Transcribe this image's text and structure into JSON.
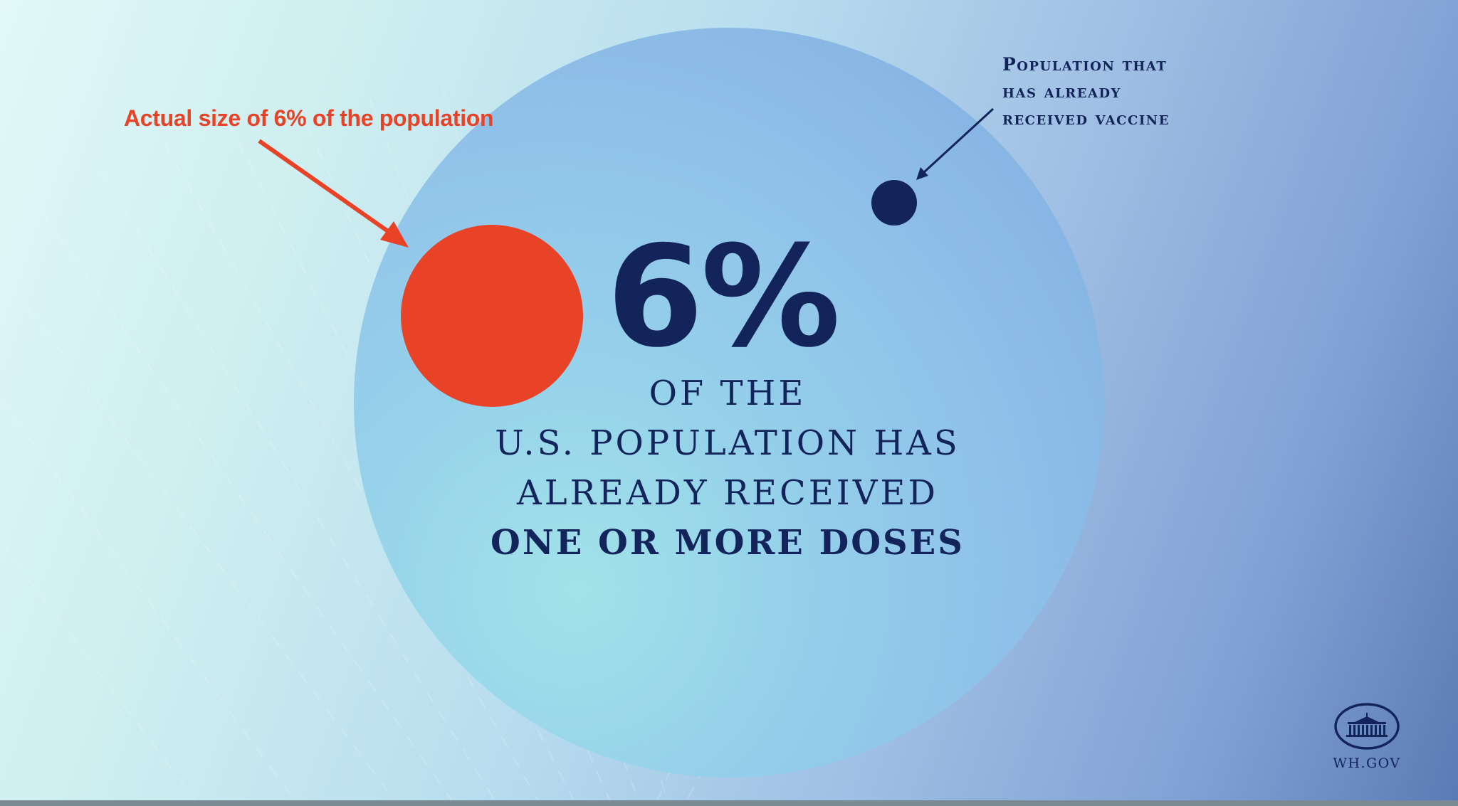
{
  "annotations": {
    "actual_size": "Actual size of 6% of the population",
    "vaccinated_lines": [
      "Population that",
      "has already",
      "received vaccine"
    ]
  },
  "headline": {
    "percent": "6%",
    "lines": [
      "OF THE",
      "U.S. POPULATION HAS",
      "ALREADY RECEIVED",
      "ONE OR MORE DOSES"
    ]
  },
  "logo": {
    "text": "WH.GOV"
  },
  "colors": {
    "red": "#e84327",
    "navy": "#13245a",
    "circle": "#8ec2ea"
  }
}
